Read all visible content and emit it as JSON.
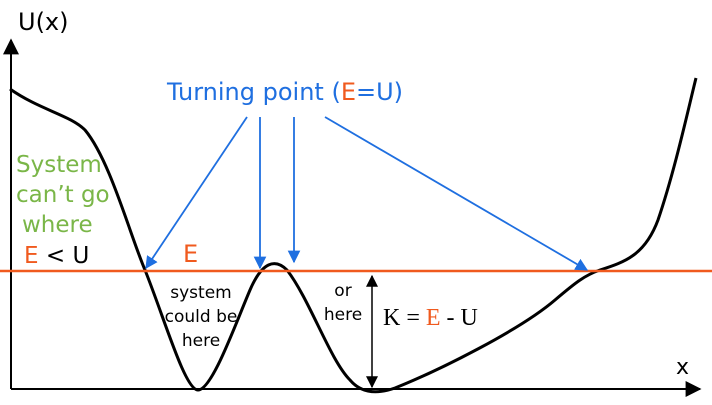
{
  "colors": {
    "curve": "#000000",
    "energy_line": "#f05a1e",
    "turning_point": "#1f6fe0",
    "forbidden_text": "#7ab648",
    "axis": "#000000"
  },
  "axes": {
    "y_label": "U(x)",
    "x_label": "x"
  },
  "turning_point_label": {
    "prefix": "Turning point (",
    "energy_symbol": "E",
    "equals": "=U)"
  },
  "energy_line": {
    "label": "E"
  },
  "forbidden_note": {
    "line1": "System",
    "line2": "can’t go",
    "line3": "where",
    "cond_e": "E",
    "cond_lt": " < U"
  },
  "allowed_left": {
    "line1": "system",
    "line2": "could be",
    "line3": "here"
  },
  "allowed_right": {
    "line1": "or",
    "line2": "here"
  },
  "kinetic": {
    "k": "K = ",
    "e": "E",
    "rest": " - U"
  }
}
